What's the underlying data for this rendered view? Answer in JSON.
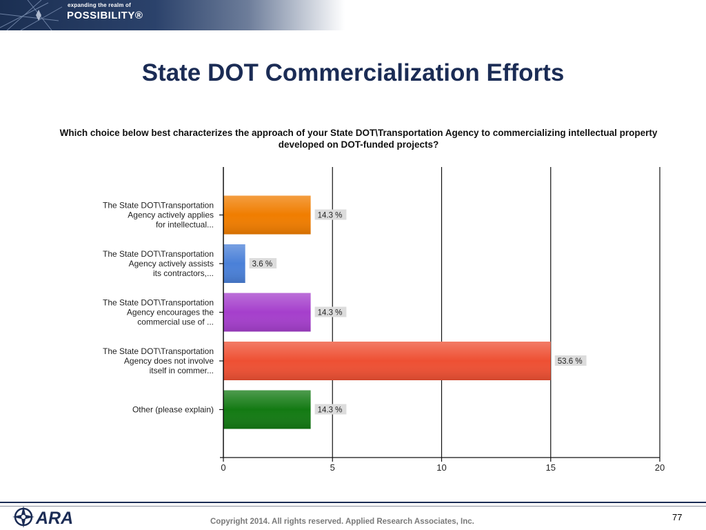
{
  "header": {
    "tagline_small": "expanding the realm of",
    "tagline_big": "POSSIBILITY®"
  },
  "slide": {
    "title": "State DOT Commercialization Efforts",
    "page_number": "77"
  },
  "footer": {
    "copyright": "Copyright 2014.  All rights reserved.  Applied Research Associates, Inc.",
    "logo_text": "ARA"
  },
  "chart_data": {
    "type": "bar",
    "orientation": "horizontal",
    "title": "Which choice below best characterizes the approach of your State DOT\\Transportation Agency to commercializing intellectual property developed on DOT-funded projects?",
    "categories": [
      [
        "The State DOT\\Transportation",
        "Agency actively applies",
        "for intellectual..."
      ],
      [
        "The State DOT\\Transportation",
        "Agency actively assists",
        "its contractors,..."
      ],
      [
        "The State DOT\\Transportation",
        "Agency encourages the",
        "commercial use of ..."
      ],
      [
        "The State DOT\\Transportation",
        "Agency does not involve",
        "itself in commer..."
      ],
      [
        "Other (please explain)"
      ]
    ],
    "values": [
      4,
      1,
      4,
      15,
      4
    ],
    "data_labels": [
      "14.3 %",
      "3.6 %",
      "14.3 %",
      "53.6 %",
      "14.3 %"
    ],
    "colors": [
      "#f07d00",
      "#4a80d8",
      "#a53fcc",
      "#ee5033",
      "#137a13"
    ],
    "xlim": [
      0,
      20
    ],
    "xticks": [
      0,
      5,
      10,
      15,
      20
    ],
    "grid": "vertical"
  }
}
